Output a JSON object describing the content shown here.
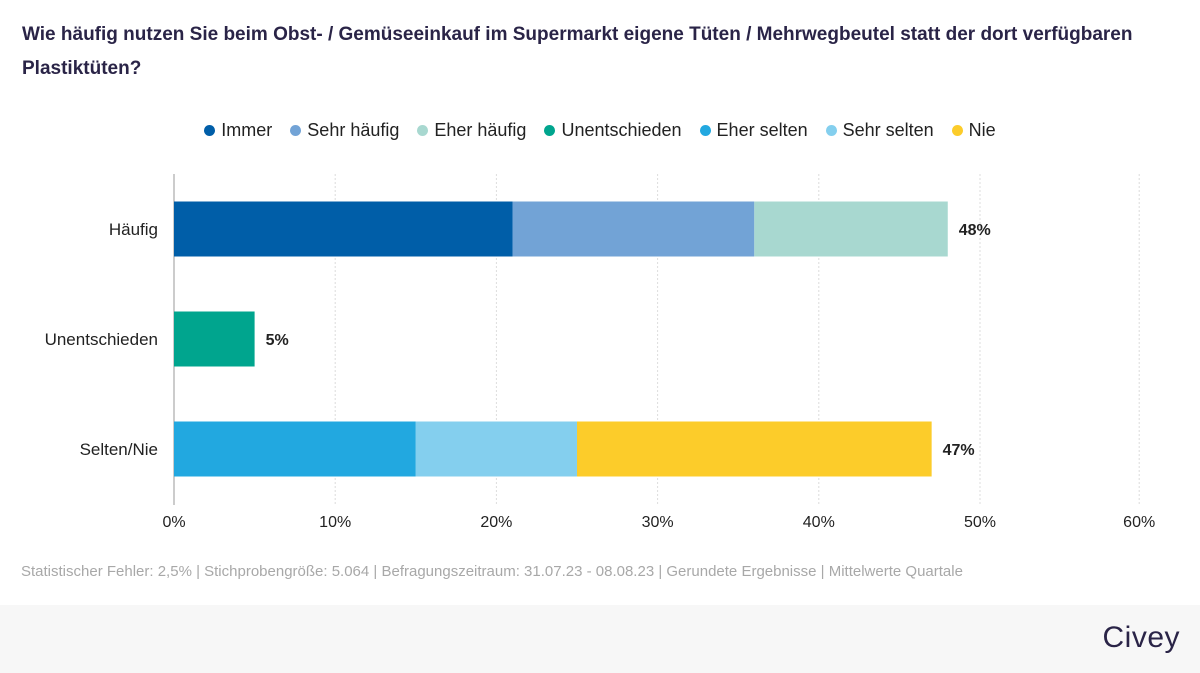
{
  "title": "Wie häufig nutzen Sie beim Obst- / Gemüseeinkauf im Supermarkt eigene Tüten / Mehrwegbeutel statt der dort verfügbaren Plastiktüten?",
  "legend": [
    {
      "label": "Immer",
      "color": "#005ea8"
    },
    {
      "label": "Sehr häufig",
      "color": "#72a3d6"
    },
    {
      "label": "Eher häufig",
      "color": "#a8d8d0"
    },
    {
      "label": "Unentschieden",
      "color": "#00a58e"
    },
    {
      "label": "Eher selten",
      "color": "#22a8e0"
    },
    {
      "label": "Sehr selten",
      "color": "#84cfee"
    },
    {
      "label": "Nie",
      "color": "#fccc2a"
    }
  ],
  "chart_data": {
    "type": "bar",
    "orientation": "horizontal",
    "stacked": true,
    "title": "Wie häufig nutzen Sie beim Obst- / Gemüseeinkauf im Supermarkt eigene Tüten / Mehrwegbeutel statt der dort verfügbaren Plastiktüten?",
    "categories": [
      "Häufig",
      "Unentschieden",
      "Selten/Nie"
    ],
    "series": [
      {
        "name": "Immer",
        "color": "#005ea8",
        "values": [
          21,
          0,
          0
        ]
      },
      {
        "name": "Sehr häufig",
        "color": "#72a3d6",
        "values": [
          15,
          0,
          0
        ]
      },
      {
        "name": "Eher häufig",
        "color": "#a8d8d0",
        "values": [
          12,
          0,
          0
        ]
      },
      {
        "name": "Unentschieden",
        "color": "#00a58e",
        "values": [
          0,
          5,
          0
        ]
      },
      {
        "name": "Eher selten",
        "color": "#22a8e0",
        "values": [
          0,
          0,
          15
        ]
      },
      {
        "name": "Sehr selten",
        "color": "#84cfee",
        "values": [
          0,
          0,
          10
        ]
      },
      {
        "name": "Nie",
        "color": "#fccc2a",
        "values": [
          0,
          0,
          22
        ]
      }
    ],
    "totals": [
      "48%",
      "5%",
      "47%"
    ],
    "xlim": [
      0,
      60
    ],
    "xticks": [
      0,
      10,
      20,
      30,
      40,
      50,
      60
    ],
    "xtick_labels": [
      "0%",
      "10%",
      "20%",
      "30%",
      "40%",
      "50%",
      "60%"
    ],
    "xlabel": "",
    "ylabel": "",
    "grid": true,
    "legend_position": "top-center"
  },
  "footer": {
    "note": "Statistischer Fehler: 2,5% | Stichprobengröße: 5.064 | Befragungszeitraum: 31.07.23 - 08.08.23 | Gerundete Ergebnisse | Mittelwerte Quartale",
    "brand": "Civey"
  }
}
